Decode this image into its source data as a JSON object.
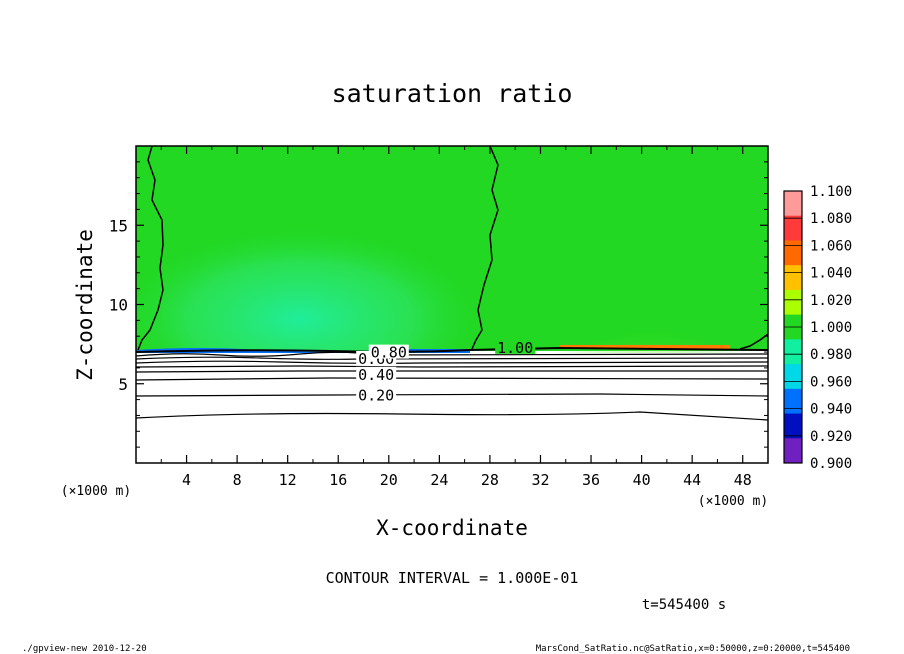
{
  "chart_data": {
    "type": "heatmap",
    "title": "saturation ratio",
    "xlabel": "X-coordinate",
    "ylabel": "Z-coordinate",
    "x_unit_note": "(×1000 m)",
    "z_unit_note": "(×1000 m)",
    "xlim": [
      0,
      50
    ],
    "ylim": [
      0,
      20
    ],
    "x_ticks": [
      4,
      8,
      12,
      16,
      20,
      24,
      28,
      32,
      36,
      40,
      44,
      48
    ],
    "y_ticks": [
      5,
      10,
      15
    ],
    "grid": false,
    "colorbar": {
      "labels": [
        "1.100",
        "1.080",
        "1.060",
        "1.040",
        "1.020",
        "1.000",
        "0.980",
        "0.960",
        "0.940",
        "0.920",
        "0.900"
      ],
      "colors": [
        "#ff9a9a",
        "#ff3a3a",
        "#ff6a00",
        "#ffc000",
        "#aaff00",
        "#22d822",
        "#10f0a0",
        "#00d8e8",
        "#0070ff",
        "#0010c0",
        "#7020c0"
      ],
      "bottom_color": "#7020c0"
    },
    "contour_labels": [
      {
        "text": "0.20",
        "x": 19,
        "z": 4.2
      },
      {
        "text": "0.40",
        "x": 19,
        "z": 5.5
      },
      {
        "text": "0.60",
        "x": 19,
        "z": 6.5
      },
      {
        "text": "0.80",
        "x": 20,
        "z": 6.9
      },
      {
        "text": "1.00",
        "x": 30,
        "z": 7.2
      }
    ],
    "contour_interval_text": "CONTOUR INTERVAL = 1.000E-01",
    "time_text": "t=545400 s"
  },
  "footer": {
    "left": "./gpview-new  2010-12-20",
    "right": "MarsCond_SatRatio.nc@SatRatio,x=0:50000,z=0:20000,t=545400"
  }
}
